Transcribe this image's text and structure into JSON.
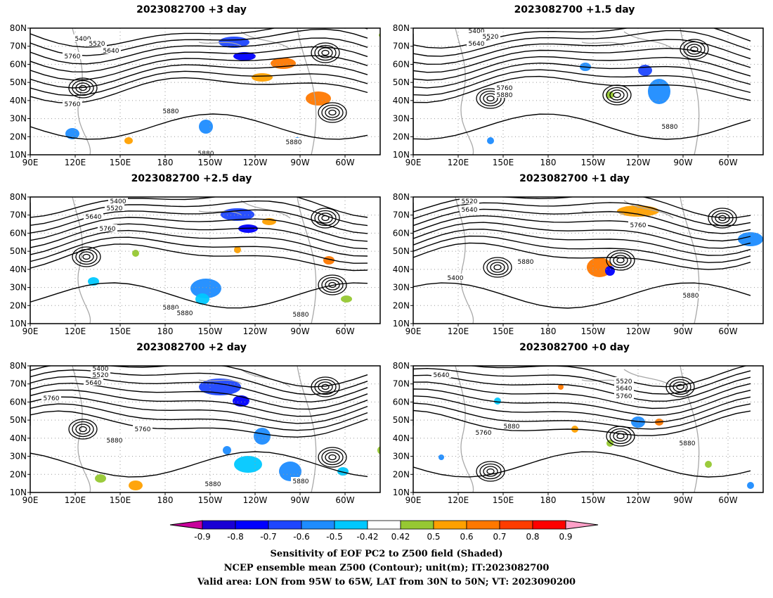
{
  "chart_data": [
    {
      "type": "map",
      "title": "2023082700 +3 day",
      "lat_ticks": [
        "10N",
        "20N",
        "30N",
        "40N",
        "50N",
        "60N",
        "70N",
        "80N"
      ],
      "lon_ticks": [
        "90E",
        "120E",
        "150E",
        "180",
        "150W",
        "120W",
        "90W",
        "60W"
      ],
      "contour_labels": [
        "5400",
        "5520",
        "5640",
        "5760",
        "5760",
        "5880",
        "5880",
        "5880"
      ]
    },
    {
      "type": "map",
      "title": "2023082700 +1.5 day",
      "lat_ticks": [
        "10N",
        "20N",
        "30N",
        "40N",
        "50N",
        "60N",
        "70N",
        "80N"
      ],
      "lon_ticks": [
        "90E",
        "120E",
        "150E",
        "180",
        "150W",
        "120W",
        "90W",
        "60W"
      ],
      "contour_labels": [
        "5400",
        "5520",
        "5640",
        "5760",
        "5880",
        "5880"
      ]
    },
    {
      "type": "map",
      "title": "2023082700 +2.5 day",
      "lat_ticks": [
        "10N",
        "20N",
        "30N",
        "40N",
        "50N",
        "60N",
        "70N",
        "80N"
      ],
      "lon_ticks": [
        "90E",
        "120E",
        "150E",
        "180",
        "150W",
        "120W",
        "90W",
        "60W"
      ],
      "contour_labels": [
        "5400",
        "5520",
        "5640",
        "5760",
        "5880",
        "5880",
        "5880"
      ]
    },
    {
      "type": "map",
      "title": "2023082700 +1 day",
      "lat_ticks": [
        "10N",
        "20N",
        "30N",
        "40N",
        "50N",
        "60N",
        "70N",
        "80N"
      ],
      "lon_ticks": [
        "90E",
        "120E",
        "150E",
        "180",
        "150W",
        "120W",
        "90W",
        "60W"
      ],
      "contour_labels": [
        "5520",
        "5640",
        "5760",
        "5880",
        "5880",
        "5400"
      ]
    },
    {
      "type": "map",
      "title": "2023082700 +2 day",
      "lat_ticks": [
        "10N",
        "20N",
        "30N",
        "40N",
        "50N",
        "60N",
        "70N",
        "80N"
      ],
      "lon_ticks": [
        "90E",
        "120E",
        "150E",
        "180",
        "150W",
        "120W",
        "90W",
        "60W"
      ],
      "contour_labels": [
        "5400",
        "5520",
        "5640",
        "5760",
        "5760",
        "5880",
        "5880",
        "5880"
      ]
    },
    {
      "type": "map",
      "title": "2023082700 +0 day",
      "lat_ticks": [
        "10N",
        "20N",
        "30N",
        "40N",
        "50N",
        "60N",
        "70N",
        "80N"
      ],
      "lon_ticks": [
        "90E",
        "120E",
        "150E",
        "180",
        "150W",
        "120W",
        "90W",
        "60W"
      ],
      "contour_labels": [
        "5640",
        "5520",
        "5640",
        "5760",
        "5760",
        "5880",
        "5880"
      ]
    }
  ],
  "colorbar": {
    "labels": [
      "-0.9",
      "-0.8",
      "-0.7",
      "-0.6",
      "-0.5",
      "-0.42",
      "0.42",
      "0.5",
      "0.6",
      "0.7",
      "0.8",
      "0.9"
    ],
    "colors": [
      "#1a00d4",
      "#0000ff",
      "#1e46ff",
      "#1e8cff",
      "#00c8ff",
      "#ffffff",
      "#96c832",
      "#ffa000",
      "#ff7800",
      "#ff3c00",
      "#ff0000"
    ],
    "left_arrow_color": "#c8009b",
    "right_arrow_color": "#ffa0c8"
  },
  "captions": [
    "Sensitivity of EOF PC2 to Z500 field (Shaded)",
    "NCEP ensemble mean Z500 (Contour); unit(m); IT:2023082700",
    "Valid area: LON from 95W to 65W, LAT from 30N to 50N; VT: 2023090200"
  ]
}
